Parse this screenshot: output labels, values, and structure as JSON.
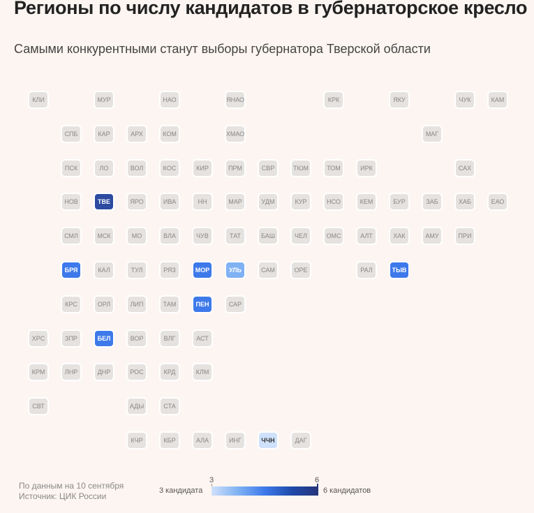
{
  "header": {
    "title": "Регионы по числу кандидатов в губернаторское кресло",
    "subtitle": "Самыми конкурентными станут выборы губернатора Тверской области"
  },
  "footer": {
    "source_line1": "По данным на 10 сентября",
    "source_line2": "Источник: ЦИК России"
  },
  "legend": {
    "min_label": "3 кандидата",
    "max_label": "6 кандидатов",
    "min_value": "3",
    "max_value": "6",
    "colors": [
      "#cfe1fb",
      "#7fb1f3",
      "#3d79ea",
      "#1e4aaa",
      "#26357a"
    ]
  },
  "map": {
    "regions": [
      {
        "label": "КЛИ",
        "col": 0,
        "row": 0
      },
      {
        "label": "МУР",
        "col": 2,
        "row": 0
      },
      {
        "label": "НАО",
        "col": 4,
        "row": 0
      },
      {
        "label": "ЯНАО",
        "col": 6,
        "row": 0
      },
      {
        "label": "КРК",
        "col": 9,
        "row": 0
      },
      {
        "label": "ЯКУ",
        "col": 11,
        "row": 0
      },
      {
        "label": "ЧУК",
        "col": 13,
        "row": 0
      },
      {
        "label": "КАМ",
        "col": 14,
        "row": 0
      },
      {
        "label": "СПБ",
        "col": 1,
        "row": 1
      },
      {
        "label": "КАР",
        "col": 2,
        "row": 1
      },
      {
        "label": "АРХ",
        "col": 3,
        "row": 1
      },
      {
        "label": "КОМ",
        "col": 4,
        "row": 1
      },
      {
        "label": "ХМАО",
        "col": 6,
        "row": 1
      },
      {
        "label": "МАГ",
        "col": 12,
        "row": 1
      },
      {
        "label": "ПСК",
        "col": 1,
        "row": 2
      },
      {
        "label": "ЛО",
        "col": 2,
        "row": 2
      },
      {
        "label": "ВОЛ",
        "col": 3,
        "row": 2
      },
      {
        "label": "КОС",
        "col": 4,
        "row": 2
      },
      {
        "label": "КИР",
        "col": 5,
        "row": 2
      },
      {
        "label": "ПРМ",
        "col": 6,
        "row": 2
      },
      {
        "label": "СВР",
        "col": 7,
        "row": 2
      },
      {
        "label": "ТЮМ",
        "col": 8,
        "row": 2
      },
      {
        "label": "ТОМ",
        "col": 9,
        "row": 2
      },
      {
        "label": "ИРК",
        "col": 10,
        "row": 2
      },
      {
        "label": "САХ",
        "col": 13,
        "row": 2
      },
      {
        "label": "НОВ",
        "col": 1,
        "row": 3
      },
      {
        "label": "ТВЕ",
        "col": 2,
        "row": 3,
        "candidates": 6
      },
      {
        "label": "ЯРО",
        "col": 3,
        "row": 3
      },
      {
        "label": "ИВА",
        "col": 4,
        "row": 3
      },
      {
        "label": "НН",
        "col": 5,
        "row": 3
      },
      {
        "label": "МАР",
        "col": 6,
        "row": 3
      },
      {
        "label": "УДМ",
        "col": 7,
        "row": 3
      },
      {
        "label": "КУР",
        "col": 8,
        "row": 3
      },
      {
        "label": "НСО",
        "col": 9,
        "row": 3
      },
      {
        "label": "КЕМ",
        "col": 10,
        "row": 3
      },
      {
        "label": "БУР",
        "col": 11,
        "row": 3
      },
      {
        "label": "ЗАБ",
        "col": 12,
        "row": 3
      },
      {
        "label": "ХАБ",
        "col": 13,
        "row": 3
      },
      {
        "label": "ЕАО",
        "col": 14,
        "row": 3
      },
      {
        "label": "СМЛ",
        "col": 1,
        "row": 4
      },
      {
        "label": "МСК",
        "col": 2,
        "row": 4
      },
      {
        "label": "МО",
        "col": 3,
        "row": 4
      },
      {
        "label": "ВЛА",
        "col": 4,
        "row": 4
      },
      {
        "label": "ЧУВ",
        "col": 5,
        "row": 4
      },
      {
        "label": "ТАТ",
        "col": 6,
        "row": 4
      },
      {
        "label": "БАШ",
        "col": 7,
        "row": 4
      },
      {
        "label": "ЧЕЛ",
        "col": 8,
        "row": 4
      },
      {
        "label": "ОМС",
        "col": 9,
        "row": 4
      },
      {
        "label": "АЛТ",
        "col": 10,
        "row": 4
      },
      {
        "label": "ХАК",
        "col": 11,
        "row": 4
      },
      {
        "label": "АМУ",
        "col": 12,
        "row": 4
      },
      {
        "label": "ПРИ",
        "col": 13,
        "row": 4
      },
      {
        "label": "БРЯ",
        "col": 1,
        "row": 5,
        "candidates": 5
      },
      {
        "label": "КАЛ",
        "col": 2,
        "row": 5
      },
      {
        "label": "ТУЛ",
        "col": 3,
        "row": 5
      },
      {
        "label": "РЯЗ",
        "col": 4,
        "row": 5
      },
      {
        "label": "МОР",
        "col": 5,
        "row": 5,
        "candidates": 5
      },
      {
        "label": "УЛЬ",
        "col": 6,
        "row": 5,
        "candidates": 4
      },
      {
        "label": "САМ",
        "col": 7,
        "row": 5
      },
      {
        "label": "ОРЕ",
        "col": 8,
        "row": 5
      },
      {
        "label": "РАЛ",
        "col": 10,
        "row": 5
      },
      {
        "label": "ТЫВ",
        "col": 11,
        "row": 5,
        "candidates": 5
      },
      {
        "label": "КРС",
        "col": 1,
        "row": 6
      },
      {
        "label": "ОРЛ",
        "col": 2,
        "row": 6
      },
      {
        "label": "ЛИП",
        "col": 3,
        "row": 6
      },
      {
        "label": "ТАМ",
        "col": 4,
        "row": 6
      },
      {
        "label": "ПЕН",
        "col": 5,
        "row": 6,
        "candidates": 5
      },
      {
        "label": "САР",
        "col": 6,
        "row": 6
      },
      {
        "label": "ХРС",
        "col": 0,
        "row": 7
      },
      {
        "label": "ЗПР",
        "col": 1,
        "row": 7
      },
      {
        "label": "БЕЛ",
        "col": 2,
        "row": 7,
        "candidates": 5
      },
      {
        "label": "ВОР",
        "col": 3,
        "row": 7
      },
      {
        "label": "ВЛГ",
        "col": 4,
        "row": 7
      },
      {
        "label": "АСТ",
        "col": 5,
        "row": 7
      },
      {
        "label": "КРМ",
        "col": 0,
        "row": 8
      },
      {
        "label": "ЛНР",
        "col": 1,
        "row": 8
      },
      {
        "label": "ДНР",
        "col": 2,
        "row": 8
      },
      {
        "label": "РОС",
        "col": 3,
        "row": 8
      },
      {
        "label": "КРД",
        "col": 4,
        "row": 8
      },
      {
        "label": "КЛМ",
        "col": 5,
        "row": 8
      },
      {
        "label": "СВТ",
        "col": 0,
        "row": 9
      },
      {
        "label": "АДЫ",
        "col": 3,
        "row": 9
      },
      {
        "label": "СТА",
        "col": 4,
        "row": 9
      },
      {
        "label": "КЧР",
        "col": 3,
        "row": 10
      },
      {
        "label": "КБР",
        "col": 4,
        "row": 10
      },
      {
        "label": "АЛА",
        "col": 5,
        "row": 10
      },
      {
        "label": "ИНГ",
        "col": 6,
        "row": 10
      },
      {
        "label": "ЧЧН",
        "col": 7,
        "row": 10,
        "candidates": 3
      },
      {
        "label": "ДАГ",
        "col": 8,
        "row": 10
      }
    ]
  }
}
